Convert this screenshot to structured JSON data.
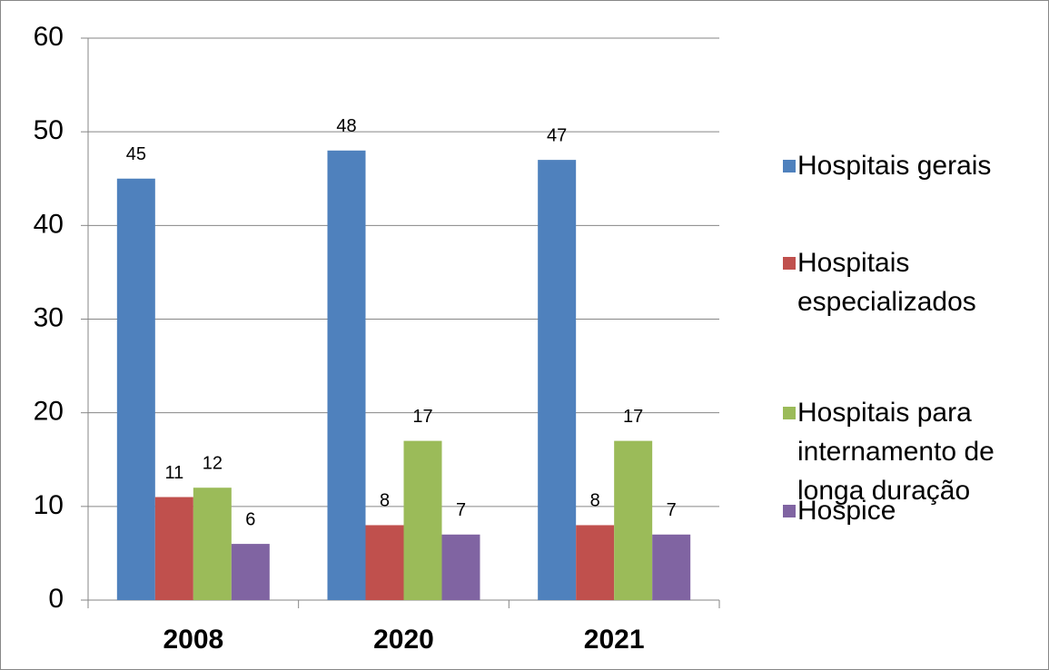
{
  "chart_data": {
    "type": "bar",
    "categories": [
      "2008",
      "2020",
      "2021"
    ],
    "series": [
      {
        "name": "Hospitais gerais",
        "color": "#4f81bd",
        "values": [
          45,
          48,
          47
        ]
      },
      {
        "name": "Hospitais especializados",
        "color": "#c0504d",
        "values": [
          11,
          8,
          8
        ]
      },
      {
        "name": "Hospitais para internamento de longa duração",
        "color": "#9bbb59",
        "values": [
          12,
          17,
          17
        ]
      },
      {
        "name": "Hospice",
        "color": "#8064a2",
        "values": [
          6,
          7,
          7
        ]
      }
    ],
    "ylim": [
      0,
      60
    ],
    "yticks": [
      0,
      10,
      20,
      30,
      40,
      50,
      60
    ],
    "grid": true,
    "legend": "right"
  }
}
